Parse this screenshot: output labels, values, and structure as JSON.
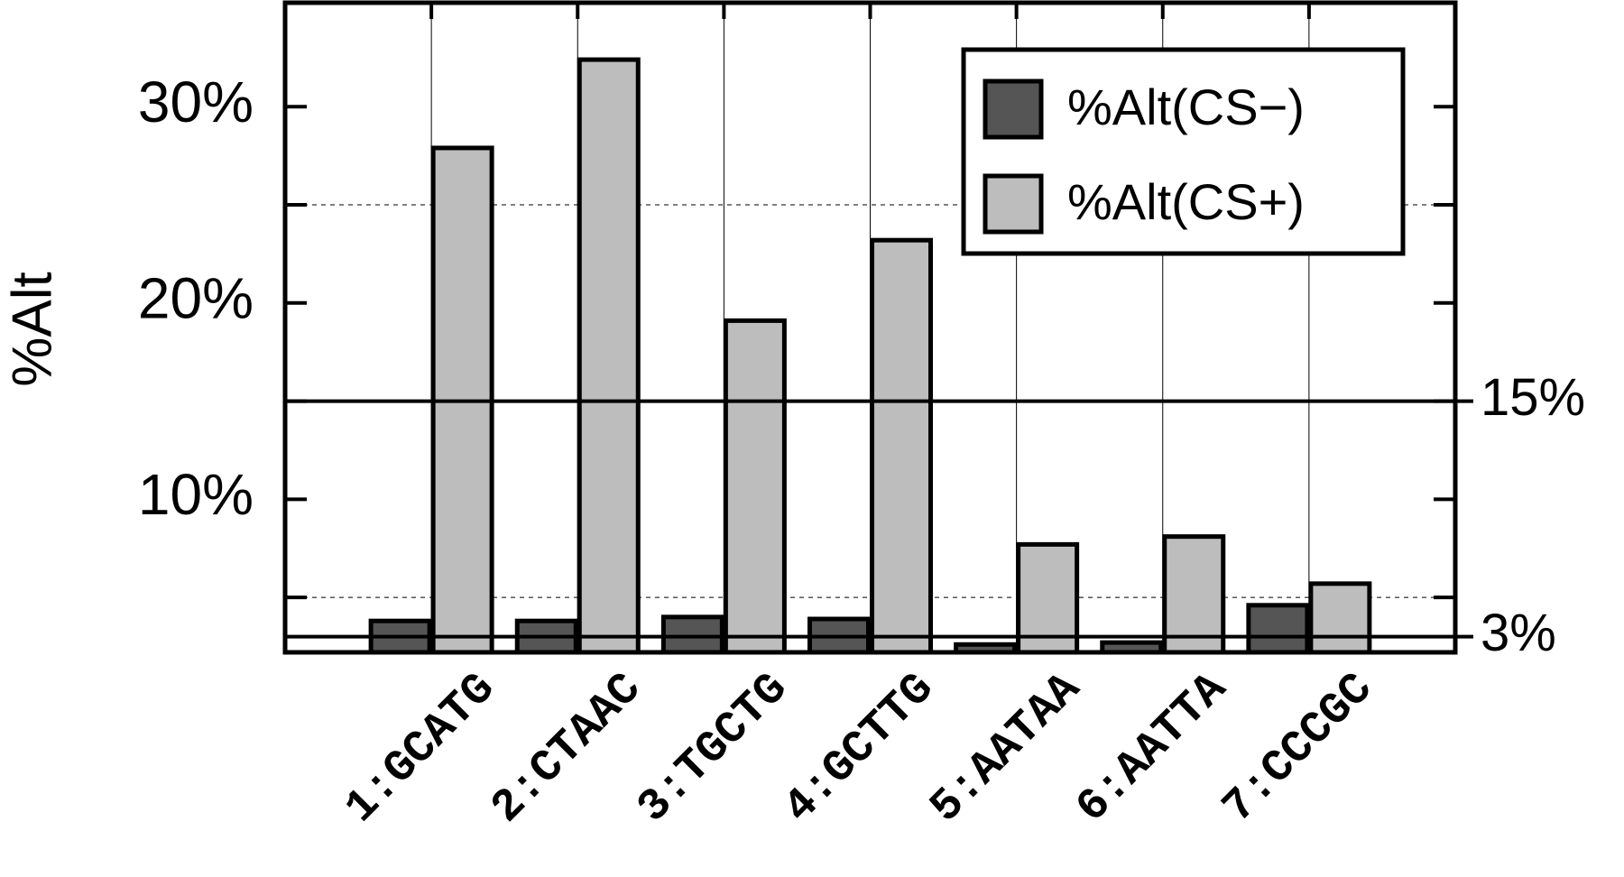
{
  "chart_data": {
    "type": "bar",
    "y_label": "%Alt",
    "categories": [
      "1:GCATG",
      "2:CTAAC",
      "3:TGCTG",
      "4:GCTTG",
      "5:AATAA",
      "6:AATTA",
      "7:CCCGC"
    ],
    "series": [
      {
        "name": "%Alt(CS−)",
        "color": "#555555",
        "values": [
          3.8,
          3.8,
          4.0,
          3.9,
          2.6,
          2.7,
          4.6
        ]
      },
      {
        "name": "%Alt(CS+)",
        "color": "#bdbdbd",
        "values": [
          27.9,
          32.4,
          19.1,
          23.2,
          7.7,
          8.1,
          5.7
        ]
      }
    ],
    "ylim": [
      2.2,
      35.3
    ],
    "yticks": [
      {
        "value": 10,
        "label": "10%"
      },
      {
        "value": 20,
        "label": "20%"
      },
      {
        "value": 30,
        "label": "30%"
      }
    ],
    "minor_yticks": [
      5,
      15,
      25
    ],
    "reference_lines": [
      {
        "value": 15,
        "label": "15%"
      },
      {
        "value": 3,
        "label": "3%"
      }
    ],
    "grid": true,
    "legend": "top-right"
  }
}
